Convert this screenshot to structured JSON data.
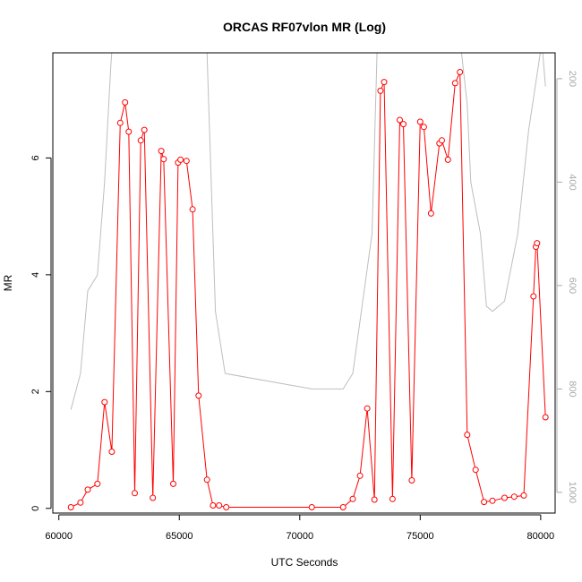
{
  "chart_data": {
    "type": "line",
    "title": "ORCAS RF07vlon MR (Log)",
    "xlabel": "UTC Seconds",
    "ylabel": "MR",
    "xlim": [
      59750,
      80600
    ],
    "ylim": [
      -0.08,
      7.8
    ],
    "y2lim_reversed": [
      1040,
      150
    ],
    "x_ticks": [
      60000,
      65000,
      70000,
      75000,
      80000
    ],
    "x_tick_labels": [
      "60000",
      "65000",
      "70000",
      "75000",
      "80000"
    ],
    "y_ticks": [
      0,
      2,
      4,
      6
    ],
    "y_tick_labels": [
      "0",
      "2",
      "4",
      "6"
    ],
    "y2_ticks": [
      200,
      400,
      600,
      800,
      1000
    ],
    "y2_tick_labels": [
      "200",
      "400",
      "600",
      "800",
      "1000"
    ],
    "grid": false,
    "colors": {
      "mr": "#ff0000",
      "pressure": "#bebebe",
      "frame": "#000000",
      "right_axis": "#aaaaaa"
    },
    "series": [
      {
        "axis": "left",
        "marker": "open-circle",
        "x": [
          60500,
          60900,
          61200,
          61600,
          61900,
          62200,
          62550,
          62750,
          62900,
          63150,
          63400,
          63550,
          63900,
          64250,
          64350,
          64750,
          64950,
          65050,
          65300,
          65550,
          65800,
          66150,
          66400,
          66650,
          66950,
          70500,
          71800,
          72200,
          72500,
          72800,
          73100,
          73350,
          73500,
          73850,
          74150,
          74300,
          74650,
          75000,
          75150,
          75450,
          75800,
          75900,
          76150,
          76450,
          76650,
          76950,
          77300,
          77650,
          78000,
          78500,
          78900,
          79300,
          79700,
          79800,
          79850,
          80200
        ],
        "y": [
          0.02,
          0.1,
          0.32,
          0.42,
          1.82,
          0.97,
          6.6,
          6.95,
          6.45,
          0.26,
          6.3,
          6.48,
          0.18,
          6.12,
          5.98,
          0.42,
          5.92,
          5.97,
          5.95,
          5.12,
          1.93,
          0.49,
          0.05,
          0.05,
          0.02,
          0.02,
          0.02,
          0.16,
          0.56,
          1.71,
          0.15,
          7.15,
          7.3,
          0.16,
          6.65,
          6.58,
          0.48,
          6.62,
          6.53,
          5.05,
          6.25,
          6.3,
          5.97,
          7.28,
          7.47,
          1.26,
          0.66,
          0.11,
          0.13,
          0.18,
          0.2,
          0.22,
          3.63,
          4.48,
          4.54,
          1.56
        ]
      },
      {
        "axis": "right",
        "marker": "none",
        "x": [
          60500,
          60900,
          61200,
          61600,
          61900,
          62150,
          62300,
          66100,
          66500,
          66900,
          70500,
          71800,
          72200,
          73000,
          73250,
          76550,
          76950,
          77100,
          77500,
          77750,
          78000,
          78500,
          79050,
          79500,
          80050,
          80200
        ],
        "y": [
          840,
          770,
          610,
          580,
          400,
          180,
          80,
          80,
          650,
          770,
          800,
          800,
          770,
          500,
          80,
          80,
          250,
          400,
          500,
          640,
          650,
          630,
          500,
          300,
          130,
          215
        ]
      }
    ]
  }
}
